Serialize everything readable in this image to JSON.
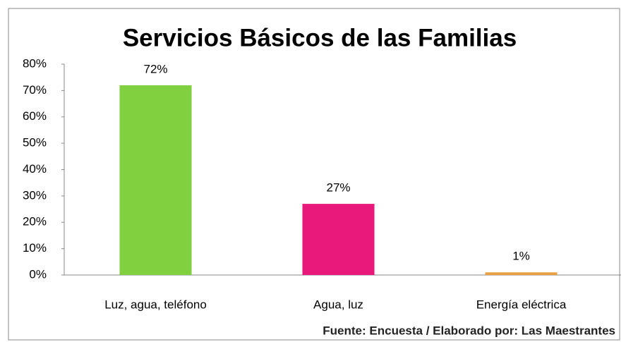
{
  "chart_data": {
    "type": "bar",
    "title": "Servicios Básicos de las Familias",
    "categories": [
      "Luz, agua,  teléfono",
      "Agua, luz",
      "Energía eléctrica"
    ],
    "values": [
      72,
      27,
      1
    ],
    "value_labels": [
      "72%",
      "27%",
      "1%"
    ],
    "colors": [
      "#80d040",
      "#e8197a",
      "#e8a040"
    ],
    "ylim": [
      0,
      80
    ],
    "yticks": [
      {
        "value": 0,
        "label": "0%"
      },
      {
        "value": 10,
        "label": "10%"
      },
      {
        "value": 20,
        "label": "20%"
      },
      {
        "value": 30,
        "label": "30%"
      },
      {
        "value": 40,
        "label": "40%"
      },
      {
        "value": 50,
        "label": "50%"
      },
      {
        "value": 60,
        "label": "60%"
      },
      {
        "value": 70,
        "label": "70%"
      },
      {
        "value": 80,
        "label": "80%"
      }
    ],
    "grid": false,
    "source": "Fuente: Encuesta / Elaborado por: Las Maestrantes"
  }
}
